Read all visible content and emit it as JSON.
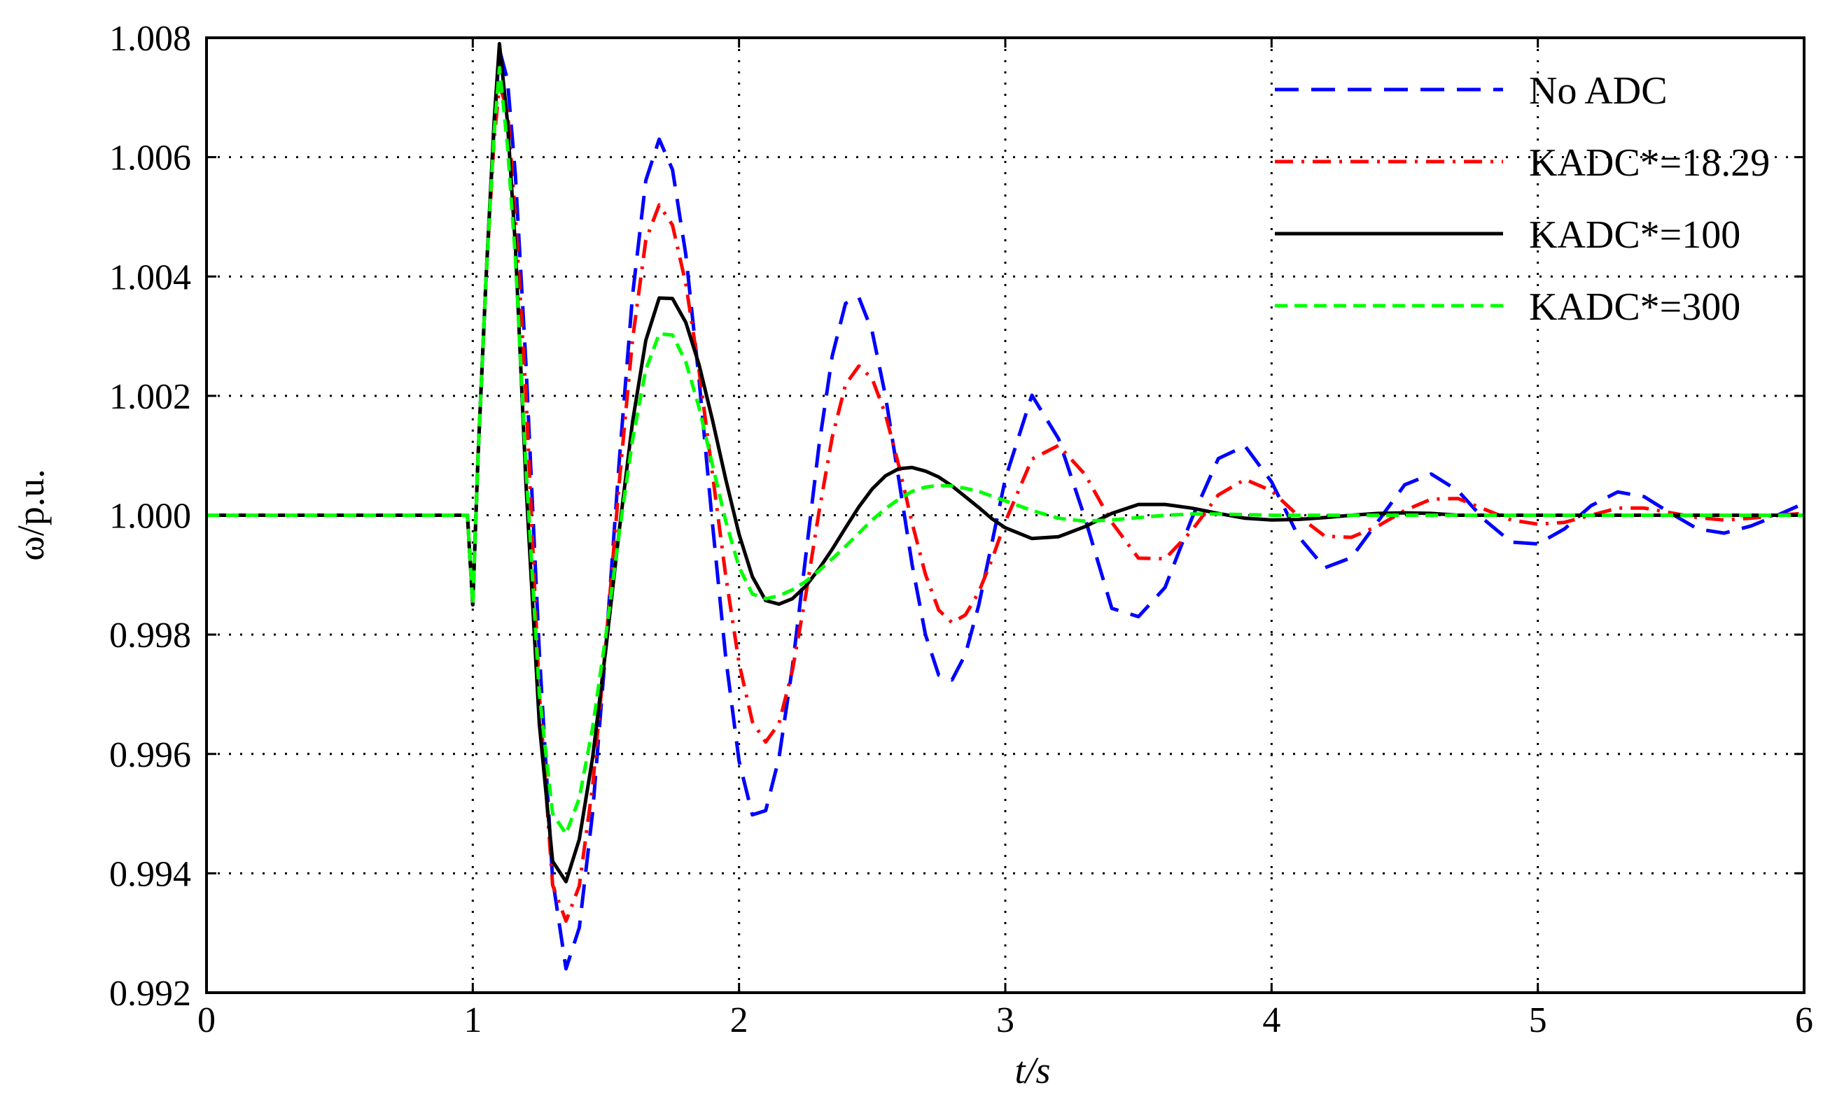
{
  "chart_data": {
    "type": "line",
    "xlabel": "t/s",
    "ylabel": "ω/p.u.",
    "xlim": [
      0,
      6
    ],
    "ylim": [
      0.992,
      1.008
    ],
    "xticks": [
      0,
      1,
      2,
      3,
      4,
      5,
      6
    ],
    "yticks": [
      0.992,
      0.994,
      0.996,
      0.998,
      {
        "value": 1,
        "label": "1.000"
      },
      1.002,
      1.004,
      1.006,
      1.008
    ],
    "grid": true,
    "legend": "upper right",
    "x": [
      0,
      0.5,
      0.98,
      1,
      1.02,
      1.05,
      1.08,
      1.1,
      1.13,
      1.16,
      1.2,
      1.25,
      1.3,
      1.35,
      1.4,
      1.45,
      1.5,
      1.55,
      1.6,
      1.65,
      1.7,
      1.75,
      1.8,
      1.85,
      1.9,
      1.95,
      2,
      2.05,
      2.1,
      2.15,
      2.2,
      2.25,
      2.3,
      2.35,
      2.4,
      2.45,
      2.5,
      2.55,
      2.6,
      2.65,
      2.7,
      2.75,
      2.8,
      2.85,
      2.9,
      2.95,
      3,
      3.1,
      3.2,
      3.3,
      3.4,
      3.5,
      3.6,
      3.7,
      3.8,
      3.9,
      4,
      4.1,
      4.2,
      4.3,
      4.4,
      4.5,
      4.6,
      4.7,
      4.8,
      4.9,
      5,
      5.1,
      5.2,
      5.3,
      5.4,
      5.5,
      5.6,
      5.7,
      5.8,
      5.9,
      6
    ],
    "series": [
      {
        "name": "No ADC",
        "color": "#0000ff",
        "style": "dashed",
        "values": [
          1,
          1,
          1,
          0.9985,
          1.001,
          1.004,
          1.0065,
          1.0078,
          1.0073,
          1.0057,
          1.0025,
          0.9977,
          0.9939,
          0.9924,
          0.99309,
          0.99502,
          0.9978,
          1.0009,
          1.00368,
          1.00561,
          1.0063,
          1.00579,
          1.00437,
          1.00227,
          0.99987,
          0.99761,
          0.99588,
          0.99498,
          0.99505,
          0.99593,
          0.99744,
          0.9993,
          1.00116,
          1.00267,
          1.00355,
          1.00365,
          1.00308,
          1.002,
          1.0006,
          0.99917,
          0.998,
          0.99732,
          0.99724,
          0.99767,
          0.99849,
          0.99954,
          1.00061,
          1.00201,
          1.00128,
          0.99994,
          0.99844,
          0.9983,
          0.99879,
          0.99994,
          1.00095,
          1.00116,
          1.00056,
          0.99965,
          0.99912,
          0.99929,
          0.9999,
          1.00051,
          1.00069,
          1.00041,
          0.99992,
          0.99955,
          0.99952,
          0.99977,
          1.00016,
          1.00039,
          1.00031,
          1.00003,
          0.99977,
          0.9997,
          0.99982,
          1,
          1.0002
        ]
      },
      {
        "name": "KADC*=18.29",
        "color": "#ff0000",
        "style": "dashdot",
        "values": [
          1,
          1,
          1,
          0.9985,
          1.001,
          1.004,
          1.0063,
          1.0072,
          1.0068,
          1.005,
          1.002,
          0.997,
          0.9938,
          0.9932,
          0.99379,
          0.99546,
          0.99786,
          1.00054,
          1.00294,
          1.00461,
          1.0052,
          1.00486,
          1.00388,
          1.00242,
          1.0007,
          0.99898,
          0.99752,
          0.99654,
          0.9962,
          0.99651,
          0.99739,
          0.99865,
          1.00005,
          1.00131,
          1.00219,
          1.0025,
          1.00229,
          1.00169,
          1.00083,
          0.99987,
          0.99901,
          0.99841,
          0.9982,
          0.99833,
          0.99871,
          0.99926,
          0.99989,
          1.00094,
          1.00117,
          1.00068,
          0.99988,
          0.99928,
          0.99927,
          0.99974,
          1.00034,
          1.0006,
          1.00041,
          0.99999,
          0.99965,
          0.99963,
          0.99982,
          1.00008,
          1.00027,
          1.00028,
          1.0001,
          0.99992,
          0.99985,
          0.99988,
          1,
          1.00012,
          1.00012,
          1.00004,
          0.99996,
          0.99992,
          0.99995,
          1,
          1.00003
        ]
      },
      {
        "name": "KADC*=100",
        "color": "#000000",
        "style": "solid",
        "values": [
          1,
          1,
          1,
          0.9985,
          1.001,
          1.004,
          1.0066,
          1.0079,
          1.0066,
          1.0045,
          1.0005,
          0.9965,
          0.9942,
          0.99386,
          0.99457,
          0.99594,
          0.99777,
          0.99974,
          1.00156,
          1.00293,
          1.00364,
          1.00363,
          1.00323,
          1.00252,
          1.0016,
          1.0006,
          0.99968,
          0.99897,
          0.99857,
          0.99851,
          0.9986,
          0.99881,
          0.9991,
          0.99943,
          0.99979,
          1.00014,
          1.00044,
          1.00066,
          1.00078,
          1.0008,
          1.00074,
          1.00064,
          1.00049,
          1.00031,
          1.00013,
          0.99994,
          0.99979,
          0.99961,
          0.99964,
          0.99981,
          1.00003,
          1.00018,
          1.00018,
          1.00012,
          1.00003,
          0.99995,
          0.99992,
          0.99993,
          0.99996,
          1,
          1.00003,
          1.00004,
          1.00003,
          1,
          1,
          1,
          1,
          1,
          1,
          1,
          1,
          1,
          1,
          1,
          1,
          1,
          1
        ]
      },
      {
        "name": "KADC*=300",
        "color": "#00ff00",
        "style": "shortdash",
        "values": [
          1,
          1,
          1,
          0.9985,
          1.001,
          1.004,
          1.0064,
          1.0075,
          1.0062,
          1.0043,
          1.0008,
          0.997,
          0.995,
          0.99466,
          0.99526,
          0.99644,
          0.998,
          0.9997,
          1.00126,
          1.00244,
          1.00304,
          1.00302,
          1.00257,
          1.0018,
          1.00085,
          0.9999,
          0.99913,
          0.99868,
          0.9986,
          0.99865,
          0.99875,
          0.99889,
          0.99907,
          0.99927,
          0.99948,
          0.9997,
          0.99992,
          1.00011,
          1.00027,
          1.0004,
          1.00047,
          1.0005,
          1.00049,
          1.00045,
          1.0004,
          1.00032,
          1.00024,
          1.00008,
          0.99995,
          0.9999,
          0.99992,
          0.99996,
          1,
          1.00002,
          1.00002,
          1.00001,
          1,
          1,
          1,
          1,
          1,
          1,
          1,
          1,
          1,
          1,
          1,
          1,
          1,
          1,
          1,
          1,
          1,
          1,
          1,
          1,
          1
        ]
      }
    ]
  }
}
